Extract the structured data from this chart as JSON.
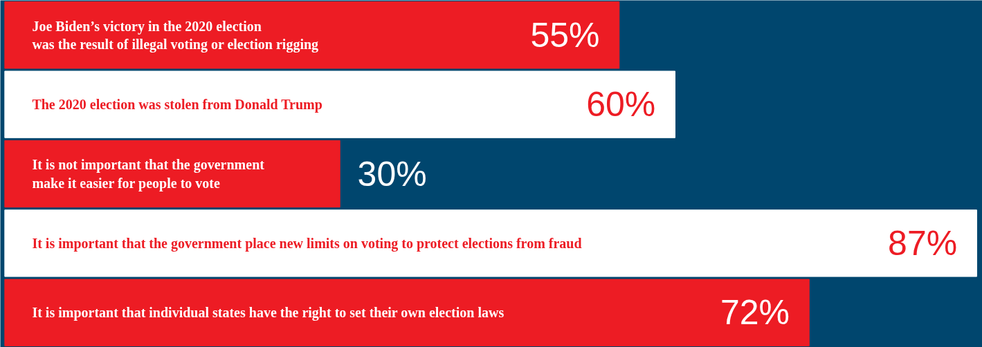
{
  "chart_data": {
    "type": "bar",
    "orientation": "horizontal",
    "categories": [
      "Joe Biden’s victory in the 2020 election\nwas the result of illegal voting or election rigging",
      "The 2020 election was stolen from Donald Trump",
      "It is not important that the government\nmake it easier for people to vote",
      "It is important that the government place new limits on voting to protect elections from fraud",
      "It is important that individual states have the right to set their own election laws"
    ],
    "values": [
      55,
      60,
      30,
      87,
      72
    ],
    "value_labels": [
      "55%",
      "60%",
      "30%",
      "87%",
      "72%"
    ],
    "colors": [
      "#ed1c24",
      "#ffffff",
      "#ed1c24",
      "#ffffff",
      "#ed1c24"
    ],
    "xlim": [
      0,
      87.5
    ],
    "tick_labels": false
  }
}
